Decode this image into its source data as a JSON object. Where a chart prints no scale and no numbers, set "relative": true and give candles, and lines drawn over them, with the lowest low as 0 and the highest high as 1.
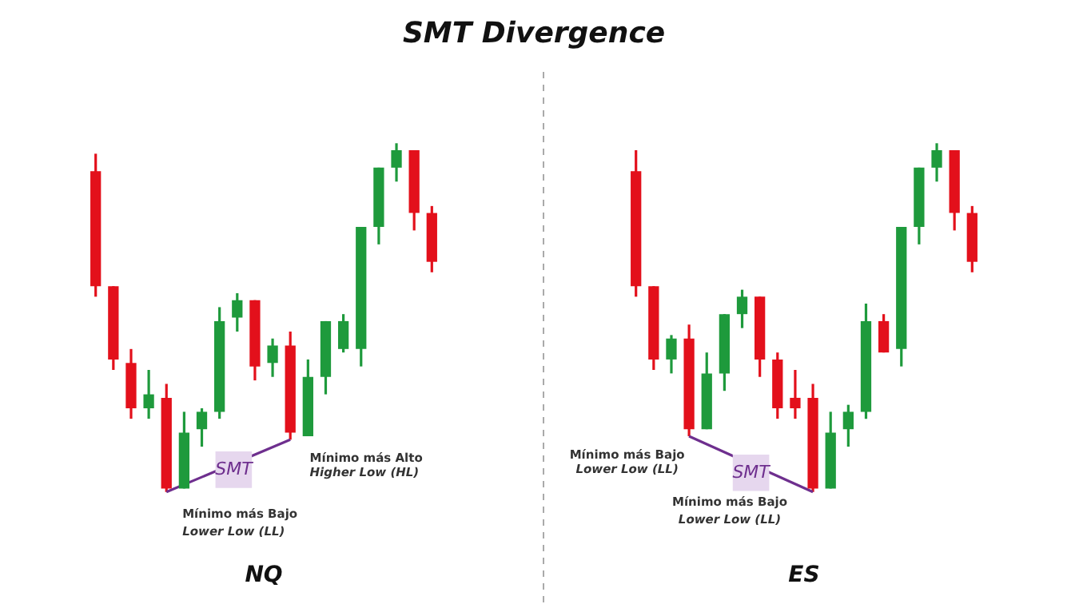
{
  "chart_data": [
    {
      "type": "candlestick",
      "title": "SMT Divergence",
      "xlabel": "NQ",
      "relative": true,
      "categories": [
        null,
        null,
        null,
        null,
        null,
        null,
        null,
        null,
        null,
        null,
        null,
        null,
        null,
        null,
        null,
        null,
        null,
        null,
        null,
        null
      ],
      "ohlc": [
        [
          0.92,
          0.97,
          0.56,
          0.59
        ],
        [
          0.59,
          0.59,
          0.35,
          0.38
        ],
        [
          0.37,
          0.41,
          0.21,
          0.24
        ],
        [
          0.24,
          0.35,
          0.21,
          0.28
        ],
        [
          0.27,
          0.31,
          0,
          0.01
        ],
        [
          0.01,
          0.23,
          0.01,
          0.17
        ],
        [
          0.18,
          0.24,
          0.13,
          0.23
        ],
        [
          0.23,
          0.53,
          0.21,
          0.49
        ],
        [
          0.5,
          0.57,
          0.46,
          0.55
        ],
        [
          0.55,
          0.55,
          0.32,
          0.36
        ],
        [
          0.37,
          0.44,
          0.33,
          0.42
        ],
        [
          0.42,
          0.46,
          0.15,
          0.17
        ],
        [
          0.16,
          0.38,
          0.16,
          0.33
        ],
        [
          0.33,
          0.49,
          0.28,
          0.49
        ],
        [
          0.41,
          0.51,
          0.4,
          0.49
        ],
        [
          0.41,
          0.76,
          0.36,
          0.76
        ],
        [
          0.76,
          0.93,
          0.71,
          0.93
        ],
        [
          0.93,
          1,
          0.89,
          0.98
        ],
        [
          0.98,
          0.98,
          0.75,
          0.8
        ],
        [
          0.8,
          0.82,
          0.63,
          0.66
        ]
      ],
      "colors": [
        "#e3101b",
        "#e3101b",
        "#e3101b",
        "#1e9a3c",
        "#e3101b",
        "#1e9a3c",
        "#1e9a3c",
        "#1e9a3c",
        "#1e9a3c",
        "#e3101b",
        "#1e9a3c",
        "#e3101b",
        "#1e9a3c",
        "#1e9a3c",
        "#1e9a3c",
        "#1e9a3c",
        "#1e9a3c",
        "#1e9a3c",
        "#e3101b",
        "#e3101b"
      ],
      "series": [
        {
          "type": "line",
          "color": "#6e2f8e",
          "line_style": "solid",
          "values": [
            null,
            null,
            null,
            null,
            0,
            null,
            null,
            null,
            null,
            null,
            null,
            0.15,
            null,
            null,
            null,
            null,
            null,
            null,
            null,
            null
          ]
        }
      ],
      "annotations": [
        "SMT",
        "Mínimo más Bajo",
        "Lower Low (LL)",
        "Mínimo más Alto",
        "Higher Low (HL)"
      ]
    },
    {
      "type": "candlestick",
      "xlabel": "ES",
      "relative": true,
      "categories": [
        null,
        null,
        null,
        null,
        null,
        null,
        null,
        null,
        null,
        null,
        null,
        null,
        null,
        null,
        null,
        null,
        null,
        null,
        null,
        null
      ],
      "ohlc": [
        [
          0.92,
          0.98,
          0.56,
          0.59
        ],
        [
          0.59,
          0.59,
          0.35,
          0.38
        ],
        [
          0.38,
          0.45,
          0.34,
          0.44
        ],
        [
          0.44,
          0.48,
          0.16,
          0.18
        ],
        [
          0.18,
          0.4,
          0.18,
          0.34
        ],
        [
          0.34,
          0.51,
          0.29,
          0.51
        ],
        [
          0.51,
          0.58,
          0.47,
          0.56
        ],
        [
          0.56,
          0.56,
          0.33,
          0.38
        ],
        [
          0.38,
          0.4,
          0.21,
          0.24
        ],
        [
          0.27,
          0.35,
          0.21,
          0.24
        ],
        [
          0.27,
          0.31,
          0,
          0.01
        ],
        [
          0.01,
          0.23,
          0.01,
          0.17
        ],
        [
          0.18,
          0.25,
          0.13,
          0.23
        ],
        [
          0.23,
          0.54,
          0.21,
          0.49
        ],
        [
          0.49,
          0.51,
          0.4,
          0.4
        ],
        [
          0.41,
          0.76,
          0.36,
          0.76
        ],
        [
          0.76,
          0.93,
          0.71,
          0.93
        ],
        [
          0.93,
          1,
          0.89,
          0.98
        ],
        [
          0.98,
          0.98,
          0.75,
          0.8
        ],
        [
          0.8,
          0.82,
          0.63,
          0.66
        ]
      ],
      "colors": [
        "#e3101b",
        "#e3101b",
        "#1e9a3c",
        "#e3101b",
        "#1e9a3c",
        "#1e9a3c",
        "#1e9a3c",
        "#e3101b",
        "#e3101b",
        "#e3101b",
        "#e3101b",
        "#1e9a3c",
        "#1e9a3c",
        "#1e9a3c",
        "#e3101b",
        "#1e9a3c",
        "#1e9a3c",
        "#1e9a3c",
        "#e3101b",
        "#e3101b"
      ],
      "series": [
        {
          "type": "line",
          "color": "#6e2f8e",
          "line_style": "solid",
          "values": [
            null,
            null,
            null,
            0.16,
            null,
            null,
            null,
            null,
            null,
            null,
            0,
            null,
            null,
            null,
            null,
            null,
            null,
            null,
            null,
            null
          ]
        }
      ],
      "annotations": [
        "SMT",
        "Mínimo más Bajo",
        "Lower Low (LL)",
        "Mínimo más Bajo",
        "Lower Low (LL)"
      ]
    }
  ]
}
